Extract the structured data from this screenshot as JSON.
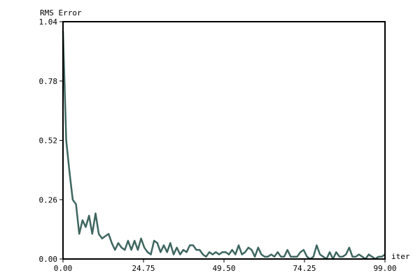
{
  "chart_data": {
    "type": "line",
    "ylabel": "RMS Error",
    "xlabel": "iter",
    "xlim": [
      0,
      99
    ],
    "ylim": [
      0,
      1.04
    ],
    "x_ticks": [
      "0.00",
      "24.75",
      "49.50",
      "74.25",
      "99.00"
    ],
    "y_ticks": [
      "0.00",
      "0.26",
      "0.52",
      "0.78",
      "1.04"
    ],
    "grid": false,
    "series": [
      {
        "color": "#3f6660",
        "x": [
          0,
          1,
          2,
          3,
          4,
          5,
          6,
          7,
          8,
          9,
          10,
          11,
          12,
          13,
          14,
          15,
          16,
          17,
          18,
          19,
          20,
          21,
          22,
          23,
          24,
          25,
          26,
          27,
          28,
          29,
          30,
          31,
          32,
          33,
          34,
          35,
          36,
          37,
          38,
          39,
          40,
          41,
          42,
          43,
          44,
          45,
          46,
          47,
          48,
          49,
          50,
          51,
          52,
          53,
          54,
          55,
          56,
          57,
          58,
          59,
          60,
          61,
          62,
          63,
          64,
          65,
          66,
          67,
          68,
          69,
          70,
          71,
          72,
          73,
          74,
          75,
          76,
          77,
          78,
          79,
          80,
          81,
          82,
          83,
          84,
          85,
          86,
          87,
          88,
          89,
          90,
          91,
          92,
          93,
          94,
          95,
          96,
          97,
          98,
          99
        ],
        "y": [
          1.0,
          0.52,
          0.38,
          0.26,
          0.24,
          0.11,
          0.17,
          0.14,
          0.19,
          0.11,
          0.2,
          0.11,
          0.09,
          0.1,
          0.11,
          0.07,
          0.04,
          0.07,
          0.05,
          0.04,
          0.08,
          0.04,
          0.08,
          0.04,
          0.09,
          0.05,
          0.03,
          0.02,
          0.08,
          0.07,
          0.03,
          0.06,
          0.03,
          0.07,
          0.02,
          0.05,
          0.02,
          0.04,
          0.03,
          0.06,
          0.06,
          0.04,
          0.04,
          0.02,
          0.01,
          0.03,
          0.02,
          0.03,
          0.02,
          0.03,
          0.03,
          0.02,
          0.04,
          0.02,
          0.06,
          0.02,
          0.03,
          0.05,
          0.04,
          0.01,
          0.05,
          0.02,
          0.01,
          0.01,
          0.02,
          0.01,
          0.03,
          0.01,
          0.01,
          0.04,
          0.01,
          0.01,
          0.01,
          0.03,
          0.04,
          0.01,
          0.0,
          0.01,
          0.06,
          0.02,
          0.01,
          0.0,
          0.03,
          0.0,
          0.03,
          0.01,
          0.01,
          0.02,
          0.05,
          0.01,
          0.01,
          0.02,
          0.01,
          0.0,
          0.02,
          0.01,
          0.0,
          0.01,
          0.01,
          0.02
        ]
      }
    ]
  }
}
